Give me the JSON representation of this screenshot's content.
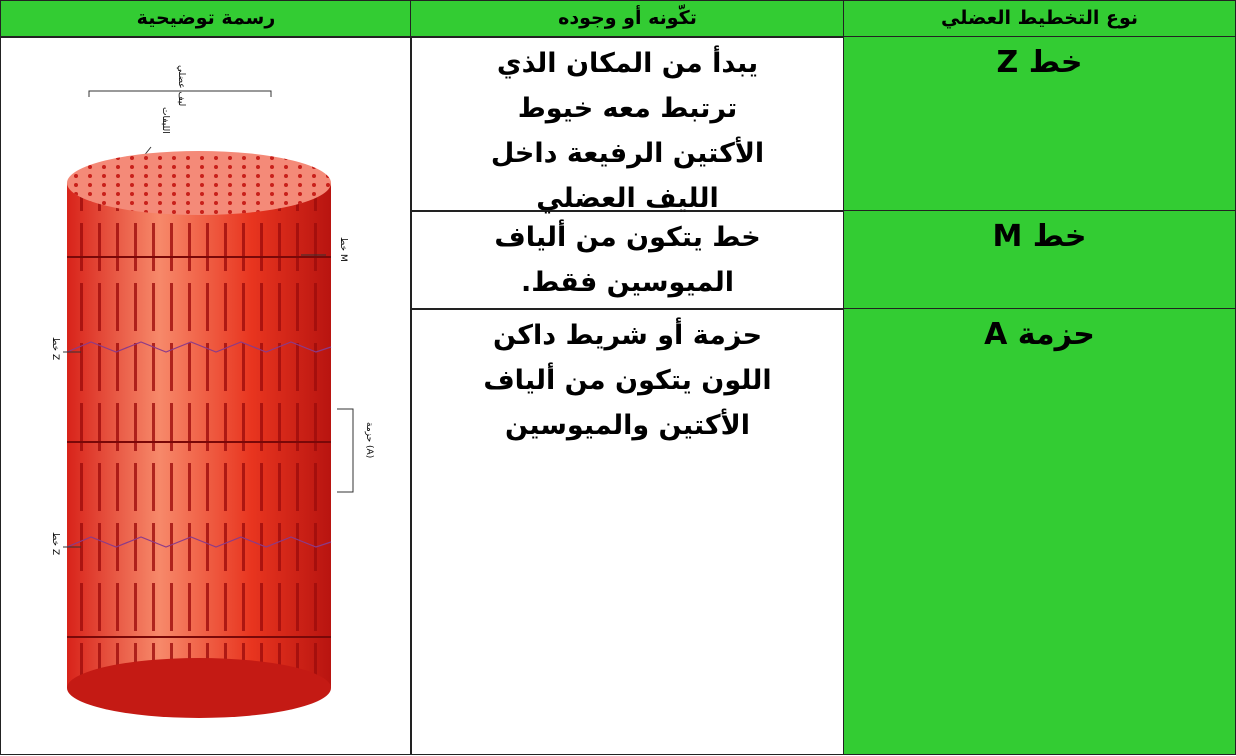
{
  "table": {
    "header": [
      "رسمة توضيحية",
      "تكّونه أو وجوده",
      "نوع التخطيط العضلي"
    ],
    "rows": [
      {
        "type": "خط Z",
        "description": [
          "يبدأ من المكان الذي",
          "ترتبط معه خيوط",
          "الأكتين الرفيعة داخل",
          "الليف العضلي"
        ]
      },
      {
        "type": "خط M",
        "description": [
          "خط يتكون من ألياف",
          "الميوسين فقط."
        ]
      },
      {
        "type": "حزمة A",
        "description": [
          "حزمة أو شريط داكن",
          "اللون يتكون من ألياف",
          "الأكتين والميوسين"
        ]
      }
    ]
  },
  "illustration": {
    "labels": [
      "ليف عضلي",
      "الليفات",
      "خط M",
      "خط Z",
      "حزمة (A)",
      "خط Z"
    ]
  }
}
